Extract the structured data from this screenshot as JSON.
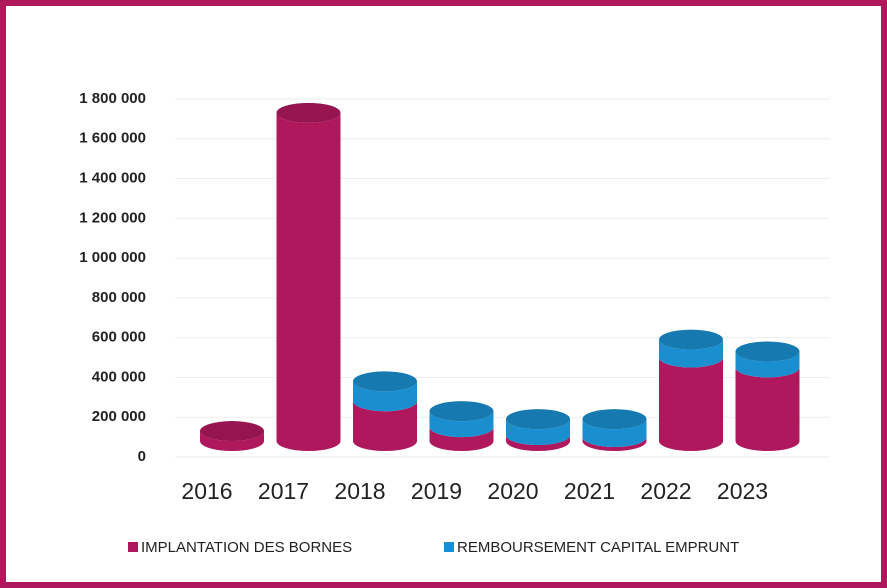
{
  "chart_data": {
    "type": "bar",
    "stacked": true,
    "three_d": true,
    "categories": [
      "2016",
      "2017",
      "2018",
      "2019",
      "2020",
      "2021",
      "2022",
      "2023"
    ],
    "series": [
      {
        "name": "IMPLANTATION DES BORNES",
        "color": "#b0185e",
        "values": [
          50000,
          1650000,
          200000,
          70000,
          30000,
          20000,
          420000,
          370000
        ]
      },
      {
        "name": "REMBOURSEMENT CAPITAL EMPRUNT",
        "color": "#1a8fd0",
        "values": [
          0,
          0,
          100000,
          80000,
          80000,
          90000,
          90000,
          80000
        ]
      }
    ],
    "ylim": [
      0,
      1800000
    ],
    "yticks": [
      0,
      {
        "value": 200000,
        "label": "200 000"
      },
      {
        "value": 400000,
        "label": "400 000"
      },
      {
        "value": 600000,
        "label": "600 000"
      },
      {
        "value": 800000,
        "label": "800 000"
      },
      {
        "value": 1000000,
        "label": "1 000 000"
      },
      {
        "value": 1200000,
        "label": "1 200 000"
      },
      {
        "value": 1400000,
        "label": "1 400 000"
      },
      {
        "value": 1600000,
        "label": "1 600 000"
      },
      {
        "value": 1800000,
        "label": "1 800 000"
      }
    ],
    "grid": true,
    "legend": "bottom"
  }
}
